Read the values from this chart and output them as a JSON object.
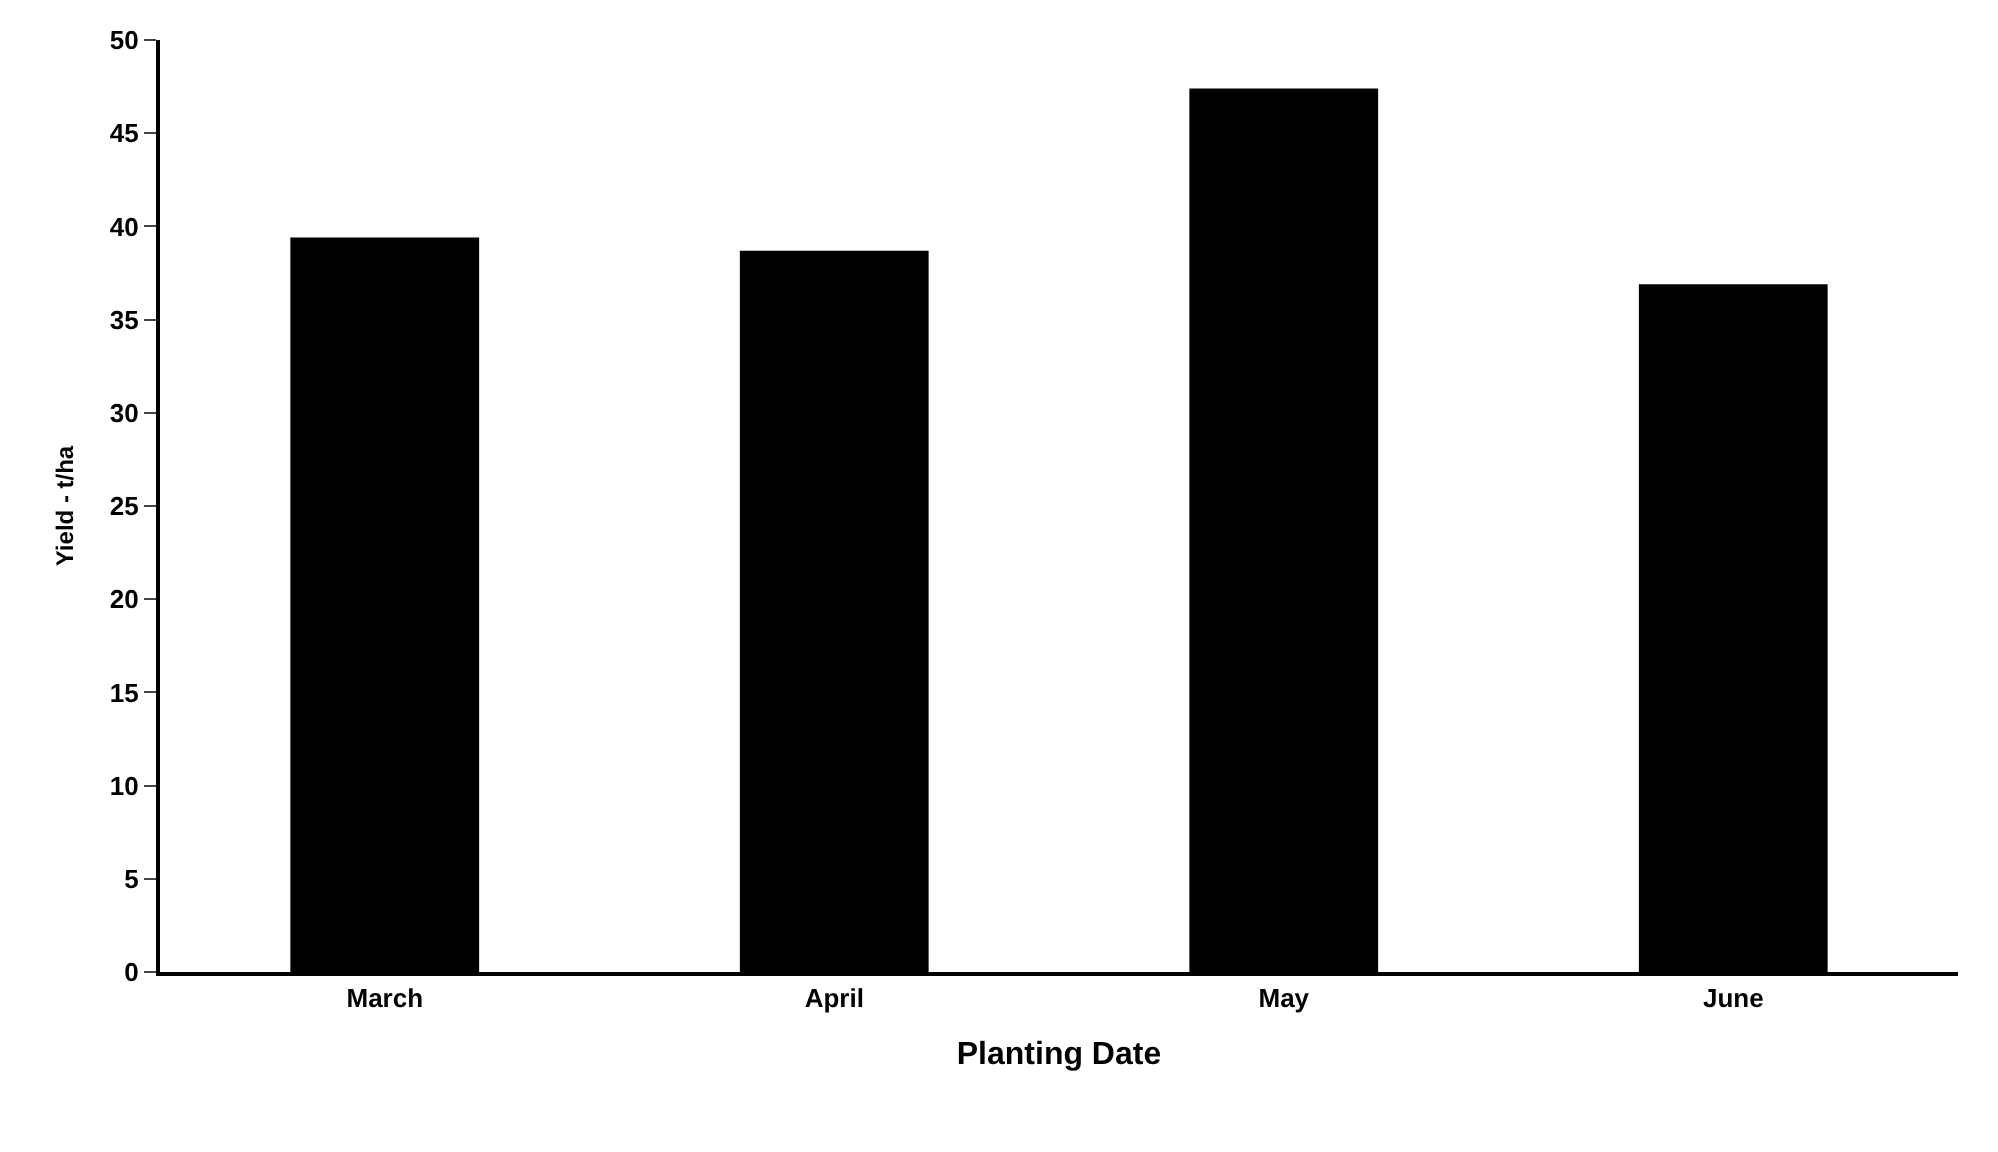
{
  "chart_data": {
    "type": "bar",
    "xlabel": "Planting Date",
    "ylabel": "Yield - t/ha",
    "categories": [
      "March",
      "April",
      "May",
      "June"
    ],
    "values": [
      39.4,
      38.7,
      47.4,
      36.9
    ],
    "color": "#000000",
    "ylim": [
      0,
      50
    ],
    "yticks": [
      0,
      5,
      10,
      15,
      20,
      25,
      30,
      35,
      40,
      45,
      50
    ]
  }
}
